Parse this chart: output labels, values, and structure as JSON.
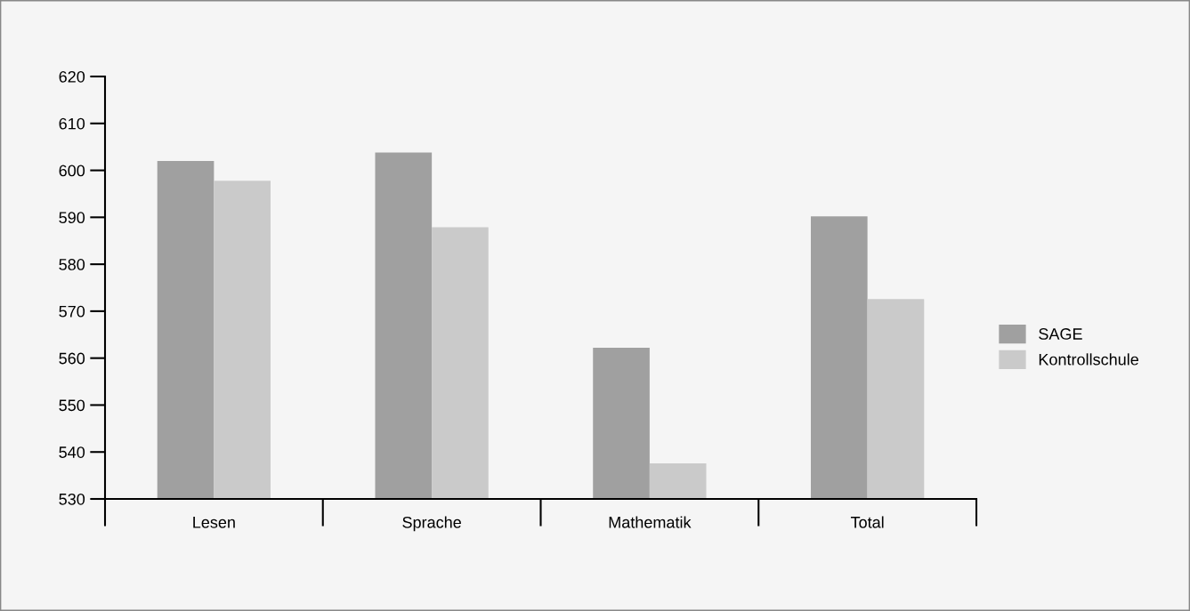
{
  "chart_data": {
    "type": "bar",
    "categories": [
      "Lesen",
      "Sprache",
      "Mathematik",
      "Total"
    ],
    "series": [
      {
        "name": "SAGE",
        "color": "#a0a0a0",
        "values": [
          602,
          603.8,
          562.2,
          590.2
        ]
      },
      {
        "name": "Kontrollschule",
        "color": "#cacaca",
        "values": [
          597.8,
          587.9,
          537.6,
          572.6
        ]
      }
    ],
    "ylim": [
      530,
      620
    ],
    "yticks": [
      530,
      540,
      550,
      560,
      570,
      580,
      590,
      600,
      610,
      620
    ],
    "grid": false,
    "legend": "right"
  }
}
